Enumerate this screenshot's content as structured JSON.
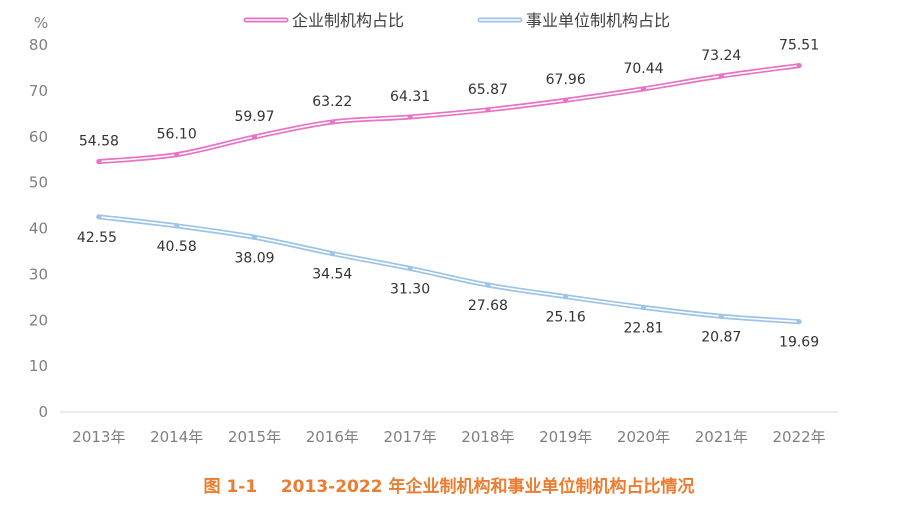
{
  "caption": "图 1-1    2013-2022 年企业制机构和事业单位制机构占比情况",
  "chart_data": {
    "type": "line",
    "categories": [
      "2013年",
      "2014年",
      "2015年",
      "2016年",
      "2017年",
      "2018年",
      "2019年",
      "2020年",
      "2021年",
      "2022年"
    ],
    "y_unit": "%",
    "ylim": [
      0,
      80
    ],
    "yticks": [
      0,
      10,
      20,
      30,
      40,
      50,
      60,
      70,
      80
    ],
    "grid": false,
    "legend_position": "top",
    "series": [
      {
        "name": "企业制机构占比",
        "color": "#e872c4",
        "values": [
          54.58,
          56.1,
          59.97,
          63.22,
          64.31,
          65.87,
          67.96,
          70.44,
          73.24,
          75.51
        ],
        "labels": [
          "54.58",
          "56.10",
          "59.97",
          "63.22",
          "64.31",
          "65.87",
          "67.96",
          "70.44",
          "73.24",
          "75.51"
        ]
      },
      {
        "name": "事业单位制机构占比",
        "color": "#9dc3e6",
        "values": [
          42.55,
          40.58,
          38.09,
          34.54,
          31.3,
          27.68,
          25.16,
          22.81,
          20.87,
          19.69
        ],
        "labels": [
          "42.55",
          "40.58",
          "38.09",
          "34.54",
          "31.30",
          "27.68",
          "25.16",
          "22.81",
          "20.87",
          "19.69"
        ]
      }
    ]
  }
}
